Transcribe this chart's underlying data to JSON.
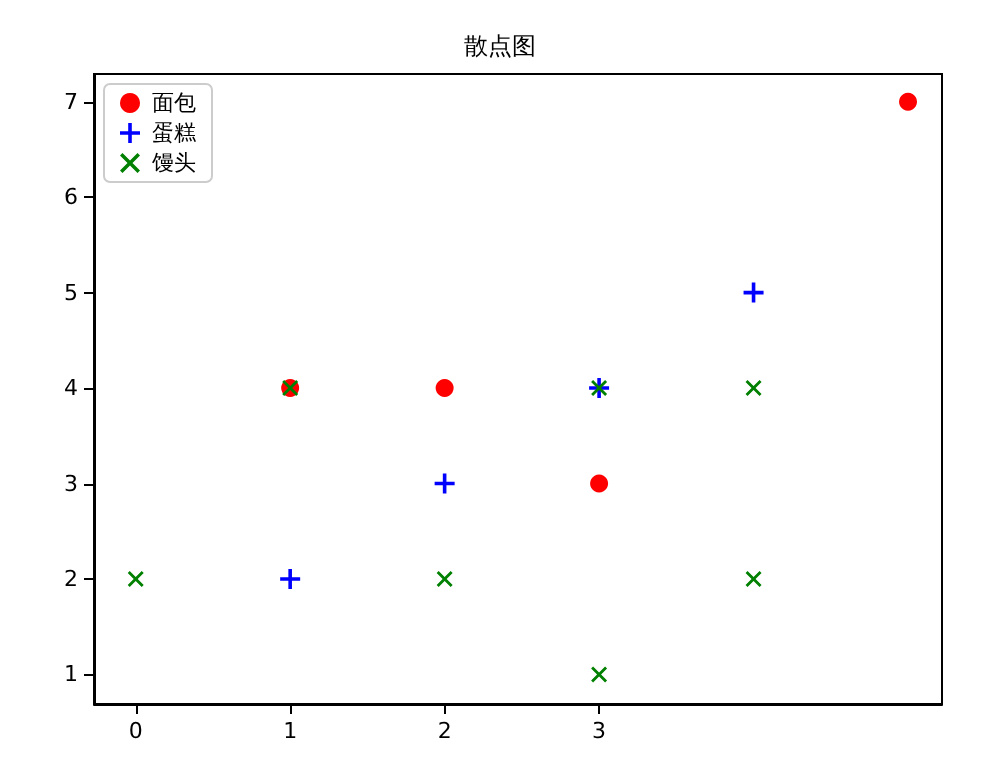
{
  "chart_data": {
    "type": "scatter",
    "title": "散点图",
    "series": [
      {
        "name": "面包",
        "color": "#ff0000",
        "marker": "circle",
        "x": [
          1,
          2,
          3,
          5
        ],
        "values": [
          4,
          4,
          3,
          7
        ]
      },
      {
        "name": "蛋糕",
        "color": "#0000ff",
        "marker": "plus",
        "x": [
          1,
          2,
          3,
          4
        ],
        "values": [
          2,
          3,
          4,
          5
        ]
      },
      {
        "name": "馒头",
        "color": "#008000",
        "marker": "cross",
        "x": [
          0,
          1,
          2,
          3,
          3,
          4,
          4
        ],
        "values": [
          2,
          4,
          2,
          1,
          4,
          4,
          2
        ]
      }
    ],
    "xlim": [
      -0.27,
      5.22
    ],
    "xticks": [
      0,
      1,
      2,
      3
    ],
    "ylim": [
      0.69,
      7.29
    ],
    "yticks": [
      1,
      2,
      3,
      4,
      5,
      6,
      7
    ],
    "grid": false,
    "legend": "top left"
  }
}
